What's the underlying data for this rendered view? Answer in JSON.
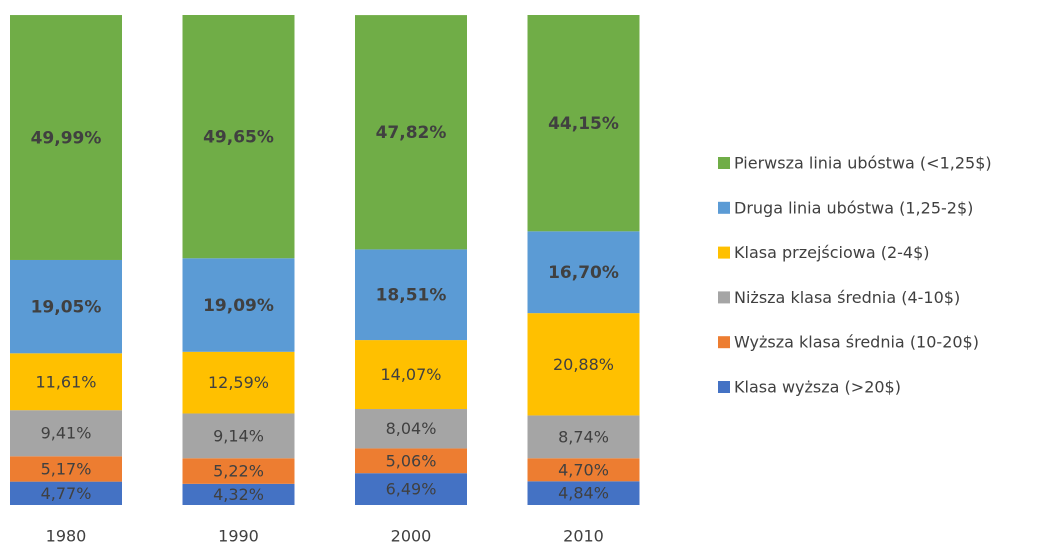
{
  "chart_data": {
    "type": "stacked_bar",
    "categories": [
      "1980",
      "1990",
      "2000",
      "2010"
    ],
    "series": [
      {
        "name": "Klasa wyższa (>20$)",
        "color": "#4472c4",
        "values": [
          4.77,
          4.32,
          6.49,
          4.84
        ],
        "value_labels": [
          "4,77%",
          "4,32%",
          "6,49%",
          "4,84%"
        ]
      },
      {
        "name": "Wyższa klasa średnia (10-20$)",
        "color": "#ed7d31",
        "values": [
          5.17,
          5.22,
          5.06,
          4.7
        ],
        "value_labels": [
          "5,17%",
          "5,22%",
          "5,06%",
          "4,70%"
        ]
      },
      {
        "name": "Niższa klasa średnia (4-10$)",
        "color": "#a5a5a5",
        "values": [
          9.41,
          9.14,
          8.04,
          8.74
        ],
        "value_labels": [
          "9,41%",
          "9,14%",
          "8,04%",
          "8,74%"
        ]
      },
      {
        "name": "Klasa przejściowa (2-4$)",
        "color": "#ffc000",
        "values": [
          11.61,
          12.59,
          14.07,
          20.88
        ],
        "value_labels": [
          "11,61%",
          "12,59%",
          "14,07%",
          "20,88%"
        ]
      },
      {
        "name": "Druga linia ubóstwa (1,25-2$)",
        "color": "#5b9bd5",
        "values": [
          19.05,
          19.09,
          18.51,
          16.7
        ],
        "value_labels": [
          "19,05%",
          "19,09%",
          "18,51%",
          "16,70%"
        ]
      },
      {
        "name": "Pierwsza linia ubóstwa (<1,25$)",
        "color": "#70ad47",
        "values": [
          49.99,
          49.65,
          47.82,
          44.15
        ],
        "value_labels": [
          "49,99%",
          "49,65%",
          "47,82%",
          "44,15%"
        ]
      }
    ],
    "legend": "right"
  }
}
